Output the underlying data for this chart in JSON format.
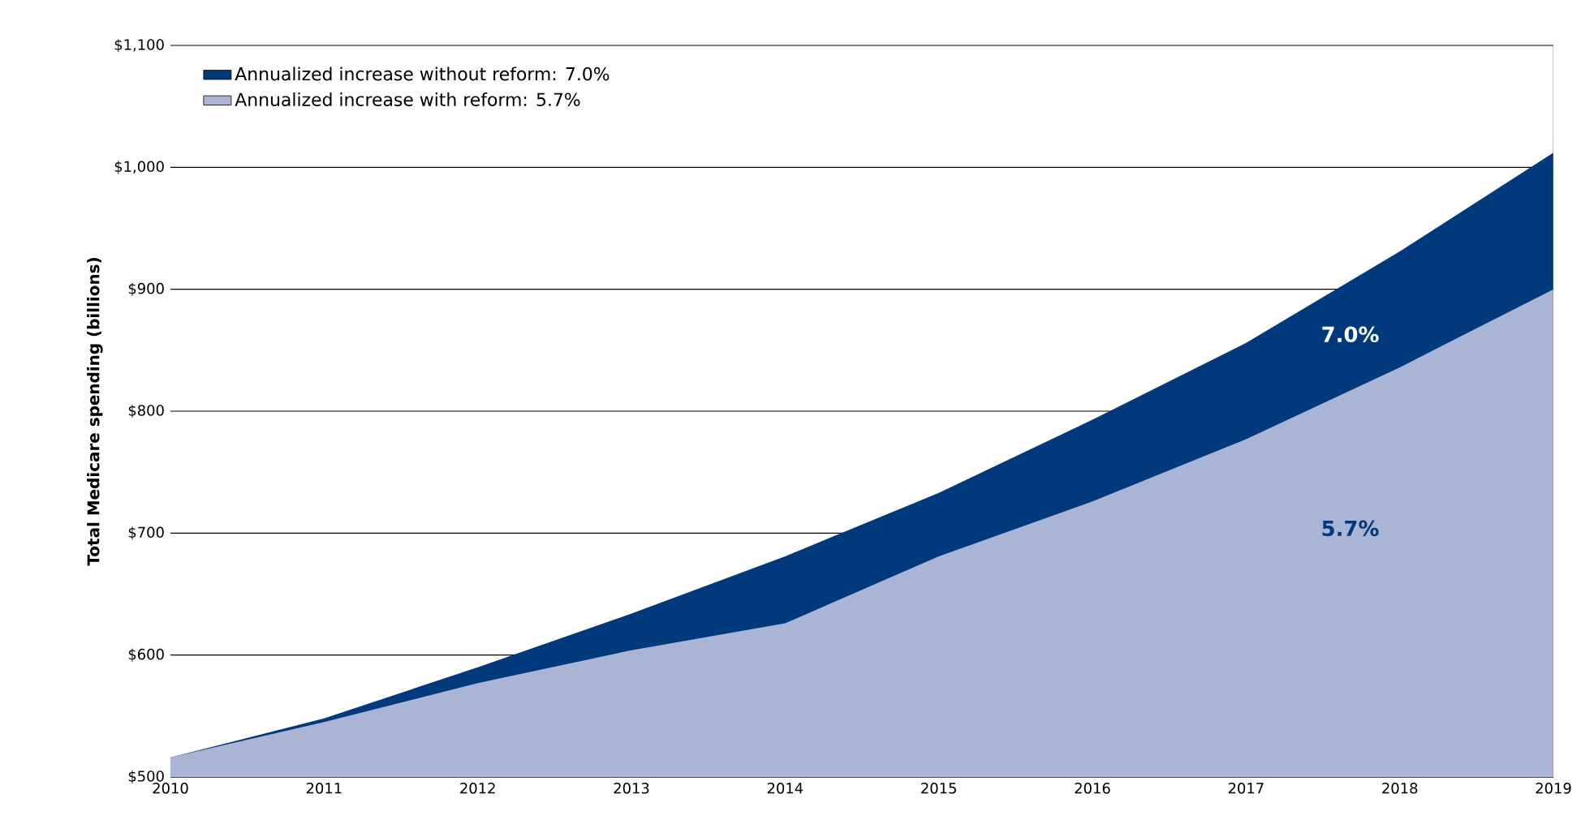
{
  "chart_data": {
    "type": "area",
    "ylabel": "Total Medicare spending (billions)",
    "x": [
      2010,
      2011,
      2012,
      2013,
      2014,
      2015,
      2016,
      2017,
      2018,
      2019
    ],
    "series": [
      {
        "name": "Annualized increase without reform: 7.0%",
        "color": "#003a7d",
        "values": [
          516,
          548,
          590,
          634,
          681,
          733,
          793,
          856,
          931,
          1012
        ]
      },
      {
        "name": "Annualized increase with reform: 5.7%",
        "color": "#aab4d4",
        "values": [
          516,
          545,
          577,
          604,
          626,
          681,
          726,
          777,
          836,
          900
        ]
      }
    ],
    "annotations": [
      "7.0%",
      "5.7%"
    ],
    "xlim": [
      2010,
      2019
    ],
    "xticks": [
      2010,
      2011,
      2012,
      2013,
      2014,
      2015,
      2016,
      2017,
      2018,
      2019
    ],
    "ylim": [
      500,
      1100
    ],
    "yticks": [
      {
        "value": 500,
        "label": "$500"
      },
      {
        "value": 600,
        "label": "$600"
      },
      {
        "value": 700,
        "label": "$700"
      },
      {
        "value": 800,
        "label": "$800"
      },
      {
        "value": 900,
        "label": "$900"
      },
      {
        "value": 1000,
        "label": "$1,000"
      },
      {
        "value": 1100,
        "label": "$1,100"
      }
    ],
    "grid": "y",
    "legend": "top left"
  }
}
